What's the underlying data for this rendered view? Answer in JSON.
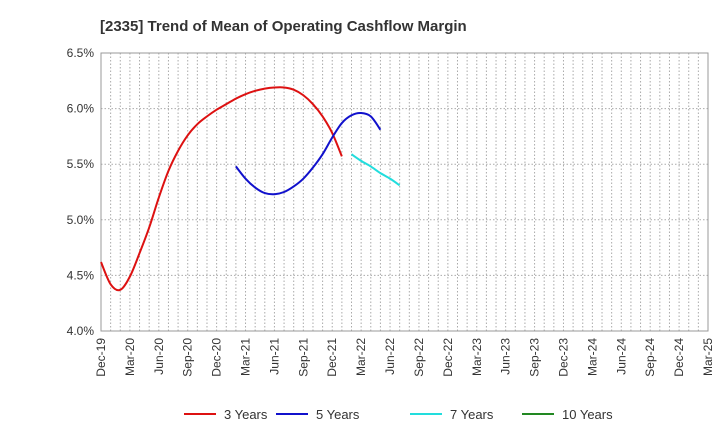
{
  "chart_data": {
    "type": "line",
    "title": "[2335]  Trend of Mean of Operating Cashflow Margin",
    "xlabel": "",
    "ylabel": "",
    "ylim": [
      4.0,
      6.5
    ],
    "yticks": [
      "4.0%",
      "4.5%",
      "5.0%",
      "5.5%",
      "6.0%",
      "6.5%"
    ],
    "ytick_values": [
      4.0,
      4.5,
      5.0,
      5.5,
      6.0,
      6.5
    ],
    "xtick_labels": [
      "Dec-19",
      "Mar-20",
      "Jun-20",
      "Sep-20",
      "Dec-20",
      "Mar-21",
      "Jun-21",
      "Sep-21",
      "Dec-21",
      "Mar-22",
      "Jun-22",
      "Sep-22",
      "Dec-22",
      "Mar-23",
      "Jun-23",
      "Sep-23",
      "Dec-23",
      "Mar-24",
      "Jun-24",
      "Sep-24",
      "Dec-24",
      "Mar-25"
    ],
    "grid": true,
    "legend_position": "bottom",
    "series": [
      {
        "name": "3 Years",
        "color": "#dd1111",
        "start_index": 0,
        "values": [
          4.62,
          4.42,
          4.37,
          4.49,
          4.7,
          4.93,
          5.2,
          5.44,
          5.62,
          5.76,
          5.86,
          5.93,
          5.99,
          6.04,
          6.09,
          6.13,
          6.16,
          6.18,
          6.19,
          6.19,
          6.17,
          6.12,
          6.04,
          5.93,
          5.78,
          5.57
        ]
      },
      {
        "name": "5 Years",
        "color": "#1111cc",
        "start_index": 14,
        "values": [
          5.48,
          5.37,
          5.29,
          5.24,
          5.23,
          5.25,
          5.3,
          5.37,
          5.47,
          5.59,
          5.74,
          5.87,
          5.94,
          5.96,
          5.93,
          5.81
        ]
      },
      {
        "name": "7 Years",
        "color": "#22dddd",
        "start_index": 26,
        "values": [
          5.59,
          5.53,
          5.48,
          5.42,
          5.37,
          5.31
        ]
      },
      {
        "name": "10 Years",
        "color": "#228822",
        "start_index": 0,
        "values": []
      }
    ]
  }
}
